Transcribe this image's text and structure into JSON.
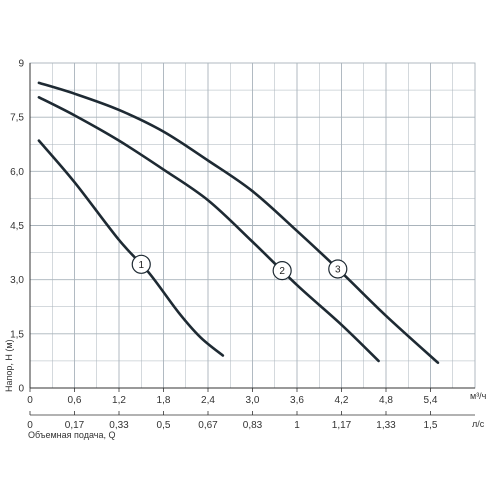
{
  "chart_data": {
    "type": "line",
    "title": "",
    "xlabel": "Объемная подача, Q",
    "ylabel": "Напор, Н (м)",
    "xlim": [
      0,
      6.0
    ],
    "ylim": [
      0,
      9
    ],
    "grid": true,
    "x_unit_primary": "м³/ч",
    "x_unit_secondary": "л/с",
    "x_ticks_primary": [
      "0",
      "0,6",
      "1,2",
      "1,8",
      "2,4",
      "3,0",
      "3,6",
      "4,2",
      "4,8",
      "5,4"
    ],
    "x_ticks_secondary": [
      "0",
      "0,17",
      "0,33",
      "0,5",
      "0,67",
      "0,83",
      "1",
      "1,17",
      "1,33",
      "1,5"
    ],
    "y_ticks": [
      "0",
      "1,5",
      "3,0",
      "4,5",
      "6,0",
      "7,5",
      "9"
    ],
    "series": [
      {
        "curve_number": "1",
        "x": [
          0.12,
          0.6,
          1.2,
          1.6,
          2.0,
          2.3,
          2.6
        ],
        "y": [
          6.85,
          5.7,
          4.1,
          3.2,
          2.1,
          1.4,
          0.9
        ]
      },
      {
        "curve_number": "2",
        "x": [
          0.12,
          0.6,
          1.2,
          1.8,
          2.4,
          3.0,
          3.6,
          4.2,
          4.7
        ],
        "y": [
          8.05,
          7.55,
          6.85,
          6.05,
          5.2,
          4.05,
          2.85,
          1.75,
          0.75
        ]
      },
      {
        "curve_number": "3",
        "x": [
          0.12,
          0.6,
          1.2,
          1.8,
          2.4,
          3.0,
          3.6,
          4.2,
          4.8,
          5.5
        ],
        "y": [
          8.45,
          8.15,
          7.7,
          7.1,
          6.3,
          5.45,
          4.35,
          3.2,
          2.0,
          0.7
        ]
      }
    ],
    "curve_label_x": [
      1.5,
      3.4,
      4.15
    ]
  },
  "colors": {
    "line": "#1e2a33",
    "grid": "#a9b3bb",
    "axis": "#333333",
    "label_fill": "#ffffff"
  }
}
